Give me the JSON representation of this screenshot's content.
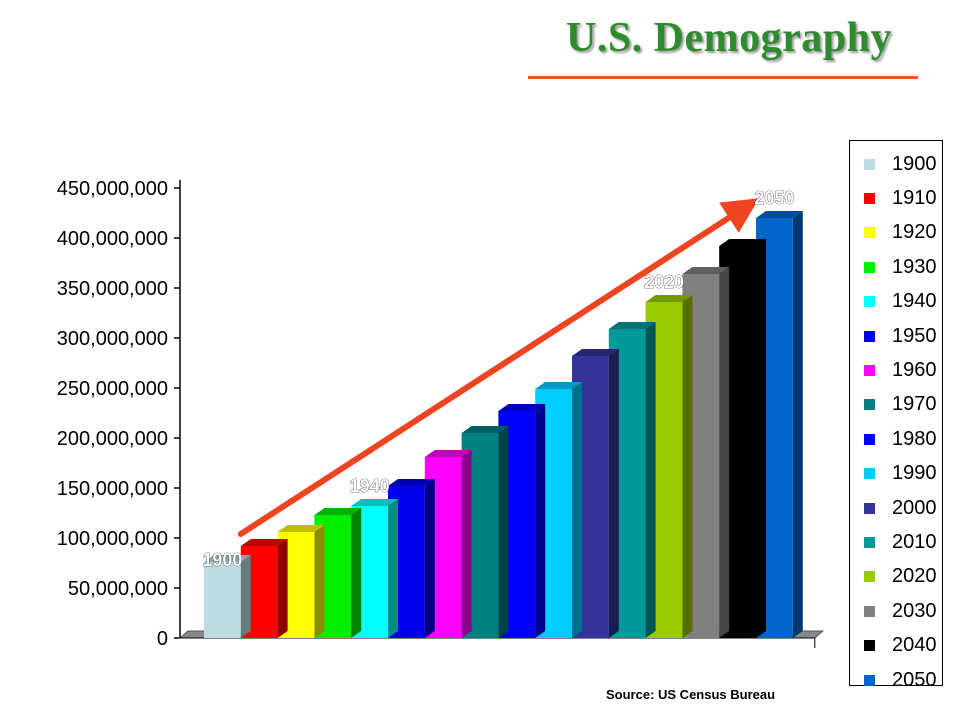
{
  "page": {
    "title": "U.S. Demography",
    "source": "Source: US Census Bureau"
  },
  "colors": {
    "title": "#2e8b2e",
    "rule": "#ee5522",
    "arrow": "#ee4422"
  },
  "chart_data": {
    "type": "bar",
    "title": "U.S. Demography",
    "xlabel": "",
    "ylabel": "",
    "ylim": [
      0,
      450000000
    ],
    "yticks": [
      "0",
      "50,000,000",
      "100,000,000",
      "150,000,000",
      "200,000,000",
      "250,000,000",
      "300,000,000",
      "350,000,000",
      "400,000,000",
      "450,000,000"
    ],
    "ytick_values": [
      0,
      50000000,
      100000000,
      150000000,
      200000000,
      250000000,
      300000000,
      350000000,
      400000000,
      450000000
    ],
    "legend_position": "right",
    "grid": false,
    "categories": [
      "1900",
      "1910",
      "1920",
      "1930",
      "1940",
      "1950",
      "1960",
      "1970",
      "1980",
      "1990",
      "2000",
      "2010",
      "2020",
      "2030",
      "2040",
      "2050"
    ],
    "values": [
      76000000,
      92000000,
      106000000,
      123000000,
      132000000,
      152000000,
      181000000,
      205000000,
      227000000,
      249000000,
      282000000,
      309000000,
      336000000,
      364000000,
      392000000,
      420000000
    ],
    "colors": [
      "#bbdde2",
      "#ff0000",
      "#ffff00",
      "#00ee00",
      "#00ffff",
      "#0000ee",
      "#ff00ff",
      "#008080",
      "#0000ff",
      "#00ccff",
      "#333399",
      "#009999",
      "#99cc00",
      "#808080",
      "#000000",
      "#0066cc"
    ],
    "annotations": [
      {
        "text": "1900",
        "category": "1900"
      },
      {
        "text": "1940",
        "category": "1940"
      },
      {
        "text": "2020",
        "category": "2020"
      },
      {
        "text": "2050",
        "category": "2050"
      }
    ],
    "trend_arrow": {
      "from": "1900",
      "to": "2050"
    }
  }
}
